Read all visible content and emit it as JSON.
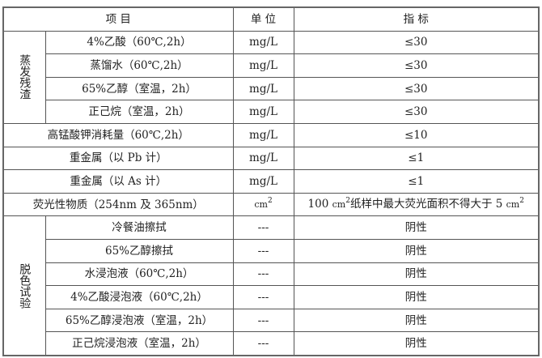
{
  "header": {
    "item": "项 目",
    "unit": "单 位",
    "indicator": "指 标"
  },
  "groups": [
    {
      "label": "蒸发残渣",
      "rows": [
        {
          "item": "4%乙酸（60℃,2h）",
          "unit": "mg/L",
          "value": "≤30"
        },
        {
          "item": "蒸馏水（60℃,2h）",
          "unit": "mg/L",
          "value": "≤30"
        },
        {
          "item": "65%乙醇（室温，2h）",
          "unit": "mg/L",
          "value": "≤30"
        },
        {
          "item": "正己烷（室温，2h）",
          "unit": "mg/L",
          "value": "≤30"
        }
      ]
    }
  ],
  "single_rows": [
    {
      "item": "高锰酸钾消耗量（60℃,2h）",
      "unit": "mg/L",
      "value": "≤10"
    },
    {
      "item": "重金属（以 Pb 计）",
      "unit": "mg/L",
      "value": "≤1"
    },
    {
      "item": "重金属（以 As 计）",
      "unit": "mg/L",
      "value": "≤1"
    }
  ],
  "fluorescence": {
    "item": "荧光性物质（254nm 及 365nm）",
    "unit_base": "cm",
    "unit_exp": "2",
    "value_pre": "100",
    "value_mid": "纸样中最大荧光面积不得大于 5",
    "cm": "cm",
    "exp": "2"
  },
  "decolor": {
    "label": "脱色试验",
    "rows": [
      {
        "item": "冷餐油擦拭",
        "unit": "---",
        "value": "阴性"
      },
      {
        "item": "65%乙醇擦拭",
        "unit": "---",
        "value": "阴性"
      },
      {
        "item": "水浸泡液（60℃,2h）",
        "unit": "---",
        "value": "阴性"
      },
      {
        "item": "4%乙酸浸泡液（60℃,2h）",
        "unit": "---",
        "value": "阴性"
      },
      {
        "item": "65%乙醇浸泡液（室温，2h）",
        "unit": "---",
        "value": "阴性"
      },
      {
        "item": "正己烷浸泡液（室温，2h）",
        "unit": "---",
        "value": "阴性"
      }
    ]
  }
}
